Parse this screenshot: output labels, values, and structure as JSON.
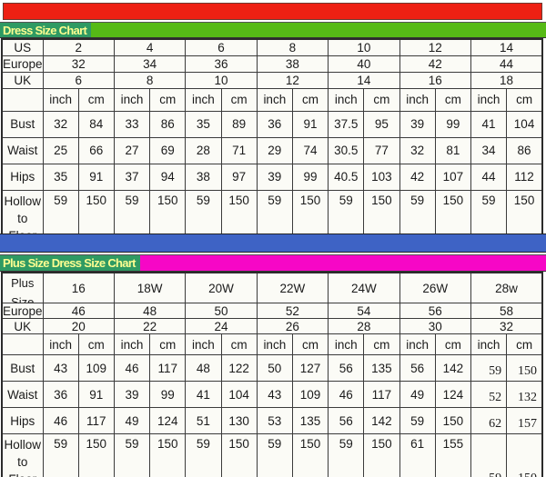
{
  "colors": {
    "top_bar": "#ee2013",
    "chart1_bar": "#56ba16",
    "title_box": "#2f9a63",
    "title_text": "#fdfd91",
    "divider_bar": "#3e63c5",
    "chart2_bar": "#f607c6"
  },
  "chart1": {
    "title": "Dress Size Chart",
    "rows": [
      {
        "label": "US",
        "values": [
          "2",
          "4",
          "6",
          "8",
          "10",
          "12",
          "14"
        ]
      },
      {
        "label": "Europe",
        "values": [
          "32",
          "34",
          "36",
          "38",
          "40",
          "42",
          "44"
        ]
      },
      {
        "label": "UK",
        "values": [
          "6",
          "8",
          "10",
          "12",
          "14",
          "16",
          "18"
        ]
      },
      {
        "label": "",
        "values": [
          "inch",
          "cm",
          "inch",
          "cm",
          "inch",
          "cm",
          "inch",
          "cm",
          "inch",
          "cm",
          "inch",
          "cm",
          "inch",
          "cm"
        ]
      },
      {
        "label": "Bust",
        "values": [
          "32",
          "84",
          "33",
          "86",
          "35",
          "89",
          "36",
          "91",
          "37.5",
          "95",
          "39",
          "99",
          "41",
          "104"
        ]
      },
      {
        "label": "Waist",
        "values": [
          "25",
          "66",
          "27",
          "69",
          "28",
          "71",
          "29",
          "74",
          "30.5",
          "77",
          "32",
          "81",
          "34",
          "86"
        ]
      },
      {
        "label": "Hips",
        "values": [
          "35",
          "91",
          "37",
          "94",
          "38",
          "97",
          "39",
          "99",
          "40.5",
          "103",
          "42",
          "107",
          "44",
          "112"
        ]
      },
      {
        "label": "Hollow to Floor",
        "values": [
          "59",
          "150",
          "59",
          "150",
          "59",
          "150",
          "59",
          "150",
          "59",
          "150",
          "59",
          "150",
          "59",
          "150"
        ]
      }
    ]
  },
  "chart2": {
    "title": "Plus Size Dress Size Chart",
    "rows": [
      {
        "label": "Plus Size",
        "values": [
          "16",
          "18W",
          "20W",
          "22W",
          "24W",
          "26W",
          "28w"
        ]
      },
      {
        "label": "Europe",
        "values": [
          "46",
          "48",
          "50",
          "52",
          "54",
          "56",
          "58"
        ]
      },
      {
        "label": "UK",
        "values": [
          "20",
          "22",
          "24",
          "26",
          "28",
          "30",
          "32"
        ]
      },
      {
        "label": "",
        "values": [
          "inch",
          "cm",
          "inch",
          "cm",
          "inch",
          "cm",
          "inch",
          "cm",
          "inch",
          "cm",
          "inch",
          "cm",
          "inch",
          "cm"
        ]
      },
      {
        "label": "Bust",
        "values": [
          "43",
          "109",
          "46",
          "117",
          "48",
          "122",
          "50",
          "127",
          "56",
          "135",
          "56",
          "142",
          "59",
          "150"
        ]
      },
      {
        "label": "Waist",
        "values": [
          "36",
          "91",
          "39",
          "99",
          "41",
          "104",
          "43",
          "109",
          "46",
          "117",
          "49",
          "124",
          "52",
          "132"
        ]
      },
      {
        "label": "Hips",
        "values": [
          "46",
          "117",
          "49",
          "124",
          "51",
          "130",
          "53",
          "135",
          "56",
          "142",
          "59",
          "150",
          "62",
          "157"
        ]
      },
      {
        "label": "Hollow to Floor",
        "values": [
          "59",
          "150",
          "59",
          "150",
          "59",
          "150",
          "59",
          "150",
          "59",
          "150",
          "61",
          "155",
          "59",
          "150"
        ]
      }
    ]
  }
}
